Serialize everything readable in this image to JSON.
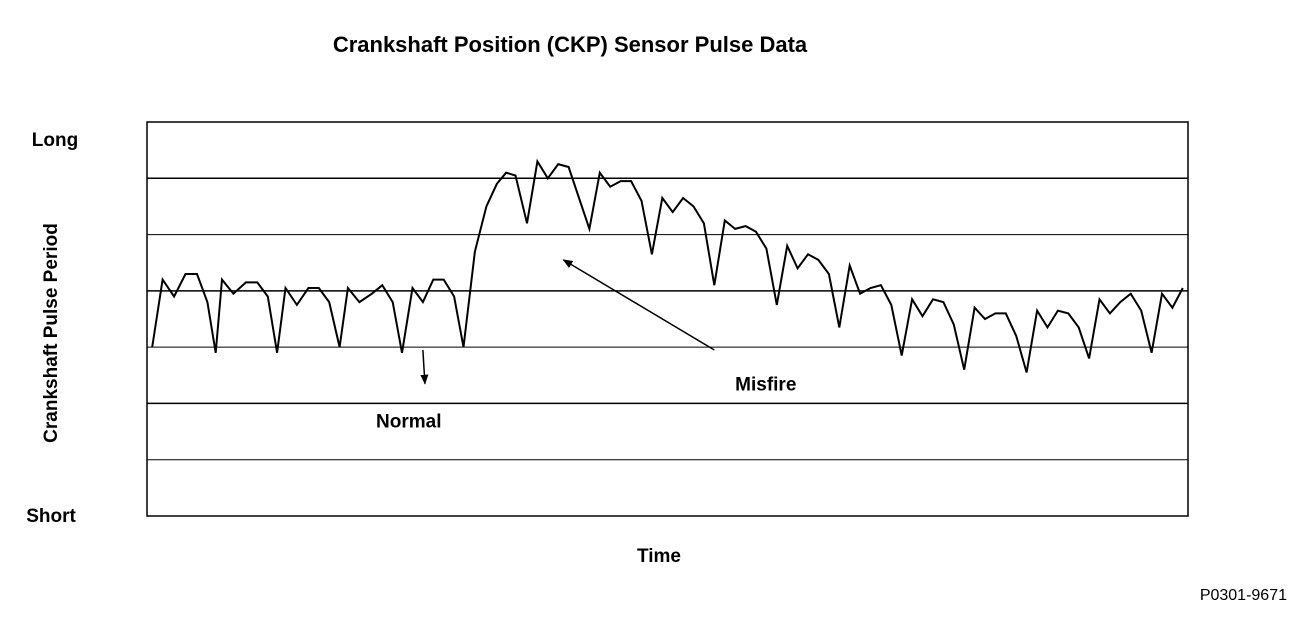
{
  "chart_data": {
    "type": "line",
    "title": "Crankshaft Position (CKP) Sensor Pulse Data",
    "xlabel": "Time",
    "ylabel": "Crankshaft Pulse Period",
    "y_top_label": "Long",
    "y_bottom_label": "Short",
    "ylim": [
      0,
      7
    ],
    "xlim": [
      0,
      100
    ],
    "grid": true,
    "series": [
      {
        "values": [
          [
            0.5,
            3.0
          ],
          [
            1.5,
            4.2
          ],
          [
            2.6,
            3.9
          ],
          [
            3.7,
            4.3
          ],
          [
            4.8,
            4.3
          ],
          [
            5.8,
            3.8
          ],
          [
            6.6,
            2.9
          ],
          [
            7.2,
            4.2
          ],
          [
            8.3,
            3.95
          ],
          [
            9.5,
            4.15
          ],
          [
            10.6,
            4.15
          ],
          [
            11.6,
            3.9
          ],
          [
            12.5,
            2.9
          ],
          [
            13.3,
            4.05
          ],
          [
            14.4,
            3.75
          ],
          [
            15.5,
            4.05
          ],
          [
            16.5,
            4.05
          ],
          [
            17.5,
            3.8
          ],
          [
            18.5,
            3.0
          ],
          [
            19.3,
            4.05
          ],
          [
            20.4,
            3.8
          ],
          [
            21.6,
            3.95
          ],
          [
            22.6,
            4.1
          ],
          [
            23.6,
            3.8
          ],
          [
            24.5,
            2.9
          ],
          [
            25.5,
            4.05
          ],
          [
            26.5,
            3.8
          ],
          [
            27.5,
            4.2
          ],
          [
            28.5,
            4.2
          ],
          [
            29.5,
            3.9
          ],
          [
            30.4,
            3.0
          ],
          [
            31.5,
            4.7
          ],
          [
            32.6,
            5.5
          ],
          [
            33.6,
            5.9
          ],
          [
            34.5,
            6.1
          ],
          [
            35.4,
            6.05
          ],
          [
            36.5,
            5.2
          ],
          [
            37.5,
            6.3
          ],
          [
            38.5,
            6.0
          ],
          [
            39.5,
            6.25
          ],
          [
            40.5,
            6.2
          ],
          [
            42.5,
            5.1
          ],
          [
            43.5,
            6.1
          ],
          [
            44.5,
            5.85
          ],
          [
            45.5,
            5.95
          ],
          [
            46.5,
            5.95
          ],
          [
            47.5,
            5.6
          ],
          [
            48.5,
            4.65
          ],
          [
            49.5,
            5.65
          ],
          [
            50.5,
            5.4
          ],
          [
            51.5,
            5.65
          ],
          [
            52.5,
            5.5
          ],
          [
            53.5,
            5.2
          ],
          [
            54.5,
            4.1
          ],
          [
            55.5,
            5.25
          ],
          [
            56.5,
            5.1
          ],
          [
            57.5,
            5.15
          ],
          [
            58.5,
            5.05
          ],
          [
            59.5,
            4.75
          ],
          [
            60.5,
            3.75
          ],
          [
            61.5,
            4.8
          ],
          [
            62.5,
            4.4
          ],
          [
            63.5,
            4.65
          ],
          [
            64.5,
            4.55
          ],
          [
            65.5,
            4.3
          ],
          [
            66.5,
            3.35
          ],
          [
            67.5,
            4.45
          ],
          [
            68.5,
            3.95
          ],
          [
            69.5,
            4.05
          ],
          [
            70.5,
            4.1
          ],
          [
            71.5,
            3.75
          ],
          [
            72.5,
            2.85
          ],
          [
            73.5,
            3.85
          ],
          [
            74.5,
            3.55
          ],
          [
            75.5,
            3.85
          ],
          [
            76.5,
            3.8
          ],
          [
            77.5,
            3.4
          ],
          [
            78.5,
            2.6
          ],
          [
            79.5,
            3.7
          ],
          [
            80.5,
            3.5
          ],
          [
            81.5,
            3.6
          ],
          [
            82.5,
            3.6
          ],
          [
            83.5,
            3.2
          ],
          [
            84.5,
            2.55
          ],
          [
            85.5,
            3.65
          ],
          [
            86.5,
            3.35
          ],
          [
            87.5,
            3.65
          ],
          [
            88.5,
            3.6
          ],
          [
            89.5,
            3.35
          ],
          [
            90.5,
            2.8
          ],
          [
            91.5,
            3.85
          ],
          [
            92.5,
            3.6
          ],
          [
            93.5,
            3.8
          ],
          [
            94.5,
            3.95
          ],
          [
            95.5,
            3.65
          ],
          [
            96.5,
            2.9
          ],
          [
            97.5,
            3.95
          ],
          [
            98.5,
            3.7
          ],
          [
            99.5,
            4.05
          ]
        ]
      }
    ],
    "annotations": [
      {
        "text": "Normal",
        "arrow_from": [
          26.5,
          2.95
        ],
        "arrow_to": [
          26.7,
          2.35
        ],
        "text_at": [
          22.0,
          1.7
        ]
      },
      {
        "text": "Misfire",
        "arrow_from": [
          54.5,
          2.95
        ],
        "arrow_to": [
          40.0,
          4.55
        ],
        "text_at": [
          56.5,
          2.35
        ]
      }
    ],
    "figure_id": "P0301-9671",
    "line_color": "#000000",
    "background": "#ffffff"
  }
}
